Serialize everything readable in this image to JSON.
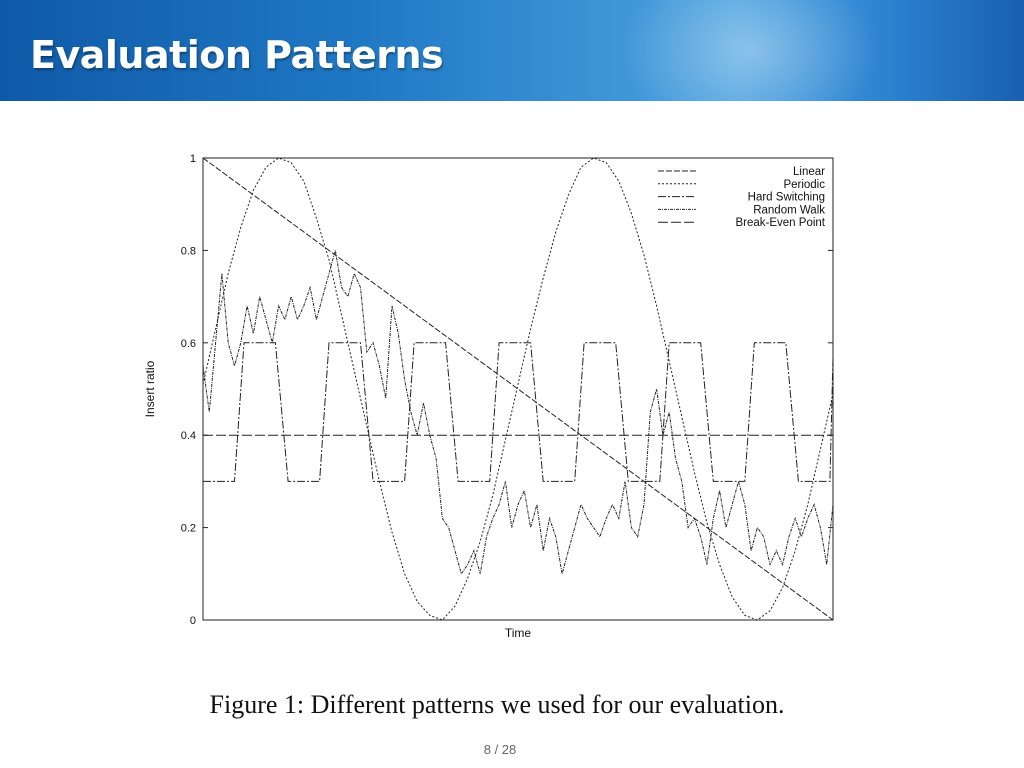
{
  "slide": {
    "title": "Evaluation Patterns",
    "caption": "Figure 1: Different patterns we used for our evaluation.",
    "page": "8 / 28"
  },
  "colors": {
    "header": "#1f78c4",
    "line": "#222222"
  },
  "chart_data": {
    "type": "line",
    "title": "",
    "xlabel": "Time",
    "ylabel": "Insert ratio",
    "xlim": [
      0,
      1
    ],
    "ylim": [
      0,
      1
    ],
    "yticks": [
      "0",
      "0.2",
      "0.4",
      "0.6",
      "0.8",
      "1"
    ],
    "grid": false,
    "legend_position": "top-right",
    "series": [
      {
        "name": "Linear",
        "dash": "6,2",
        "x": [
          0,
          1
        ],
        "y": [
          1,
          0
        ]
      },
      {
        "name": "Periodic",
        "dash": "2,2",
        "x": [
          0,
          0.02,
          0.04,
          0.06,
          0.08,
          0.1,
          0.12,
          0.14,
          0.16,
          0.18,
          0.2,
          0.22,
          0.24,
          0.26,
          0.28,
          0.3,
          0.32,
          0.34,
          0.36,
          0.38,
          0.4,
          0.42,
          0.44,
          0.46,
          0.48,
          0.5,
          0.52,
          0.54,
          0.56,
          0.58,
          0.6,
          0.62,
          0.64,
          0.66,
          0.68,
          0.7,
          0.72,
          0.74,
          0.76,
          0.78,
          0.8,
          0.82,
          0.84,
          0.86,
          0.88,
          0.9,
          0.92,
          0.94,
          0.96,
          0.98,
          1
        ],
        "y": [
          0.51,
          0.63,
          0.75,
          0.85,
          0.93,
          0.98,
          1.0,
          0.99,
          0.95,
          0.87,
          0.78,
          0.66,
          0.54,
          0.42,
          0.3,
          0.19,
          0.1,
          0.04,
          0.01,
          0.0,
          0.03,
          0.09,
          0.17,
          0.27,
          0.39,
          0.51,
          0.63,
          0.74,
          0.84,
          0.92,
          0.98,
          1.0,
          0.99,
          0.95,
          0.88,
          0.79,
          0.68,
          0.56,
          0.44,
          0.32,
          0.21,
          0.12,
          0.05,
          0.01,
          0.0,
          0.02,
          0.07,
          0.15,
          0.25,
          0.37,
          0.49
        ]
      },
      {
        "name": "Hard Switching",
        "dash": "8,2,2,2",
        "x": [
          0,
          0.05,
          0.065,
          0.115,
          0.135,
          0.185,
          0.2,
          0.25,
          0.27,
          0.32,
          0.335,
          0.385,
          0.405,
          0.455,
          0.47,
          0.52,
          0.54,
          0.59,
          0.605,
          0.655,
          0.675,
          0.725,
          0.74,
          0.79,
          0.81,
          0.86,
          0.875,
          0.925,
          0.945,
          0.995,
          1
        ],
        "y": [
          0.3,
          0.3,
          0.6,
          0.6,
          0.3,
          0.3,
          0.6,
          0.6,
          0.3,
          0.3,
          0.6,
          0.6,
          0.3,
          0.3,
          0.6,
          0.6,
          0.3,
          0.3,
          0.6,
          0.6,
          0.3,
          0.3,
          0.6,
          0.6,
          0.3,
          0.3,
          0.6,
          0.6,
          0.3,
          0.3,
          0.57
        ]
      },
      {
        "name": "Random Walk",
        "dash": "3,1,1,1",
        "x": [
          0,
          0.01,
          0.02,
          0.03,
          0.04,
          0.05,
          0.06,
          0.07,
          0.08,
          0.09,
          0.1,
          0.11,
          0.12,
          0.13,
          0.14,
          0.15,
          0.16,
          0.17,
          0.18,
          0.19,
          0.2,
          0.21,
          0.22,
          0.23,
          0.24,
          0.25,
          0.26,
          0.27,
          0.28,
          0.29,
          0.3,
          0.31,
          0.32,
          0.33,
          0.34,
          0.35,
          0.36,
          0.37,
          0.38,
          0.39,
          0.4,
          0.41,
          0.42,
          0.43,
          0.44,
          0.45,
          0.46,
          0.47,
          0.48,
          0.49,
          0.5,
          0.51,
          0.52,
          0.53,
          0.54,
          0.55,
          0.56,
          0.57,
          0.58,
          0.59,
          0.6,
          0.61,
          0.62,
          0.63,
          0.64,
          0.65,
          0.66,
          0.67,
          0.68,
          0.69,
          0.7,
          0.71,
          0.72,
          0.73,
          0.74,
          0.75,
          0.76,
          0.77,
          0.78,
          0.79,
          0.8,
          0.81,
          0.82,
          0.83,
          0.84,
          0.85,
          0.86,
          0.87,
          0.88,
          0.89,
          0.9,
          0.91,
          0.92,
          0.93,
          0.94,
          0.95,
          0.96,
          0.97,
          0.98,
          0.99,
          1
        ],
        "y": [
          0.55,
          0.45,
          0.6,
          0.75,
          0.6,
          0.55,
          0.6,
          0.68,
          0.62,
          0.7,
          0.65,
          0.6,
          0.68,
          0.65,
          0.7,
          0.65,
          0.68,
          0.72,
          0.65,
          0.7,
          0.75,
          0.8,
          0.72,
          0.7,
          0.75,
          0.72,
          0.58,
          0.6,
          0.55,
          0.48,
          0.68,
          0.62,
          0.52,
          0.45,
          0.4,
          0.47,
          0.4,
          0.35,
          0.22,
          0.2,
          0.15,
          0.1,
          0.12,
          0.15,
          0.1,
          0.18,
          0.22,
          0.25,
          0.3,
          0.2,
          0.25,
          0.28,
          0.2,
          0.25,
          0.15,
          0.22,
          0.18,
          0.1,
          0.15,
          0.2,
          0.25,
          0.22,
          0.2,
          0.18,
          0.22,
          0.25,
          0.22,
          0.3,
          0.2,
          0.18,
          0.25,
          0.45,
          0.5,
          0.4,
          0.45,
          0.35,
          0.3,
          0.2,
          0.22,
          0.18,
          0.12,
          0.22,
          0.28,
          0.2,
          0.25,
          0.3,
          0.25,
          0.15,
          0.2,
          0.18,
          0.12,
          0.15,
          0.12,
          0.18,
          0.22,
          0.18,
          0.22,
          0.25,
          0.2,
          0.12,
          0.25
        ]
      },
      {
        "name": "Break-Even Point",
        "dash": "10,3",
        "x": [
          0,
          1
        ],
        "y": [
          0.4,
          0.4
        ]
      }
    ]
  }
}
